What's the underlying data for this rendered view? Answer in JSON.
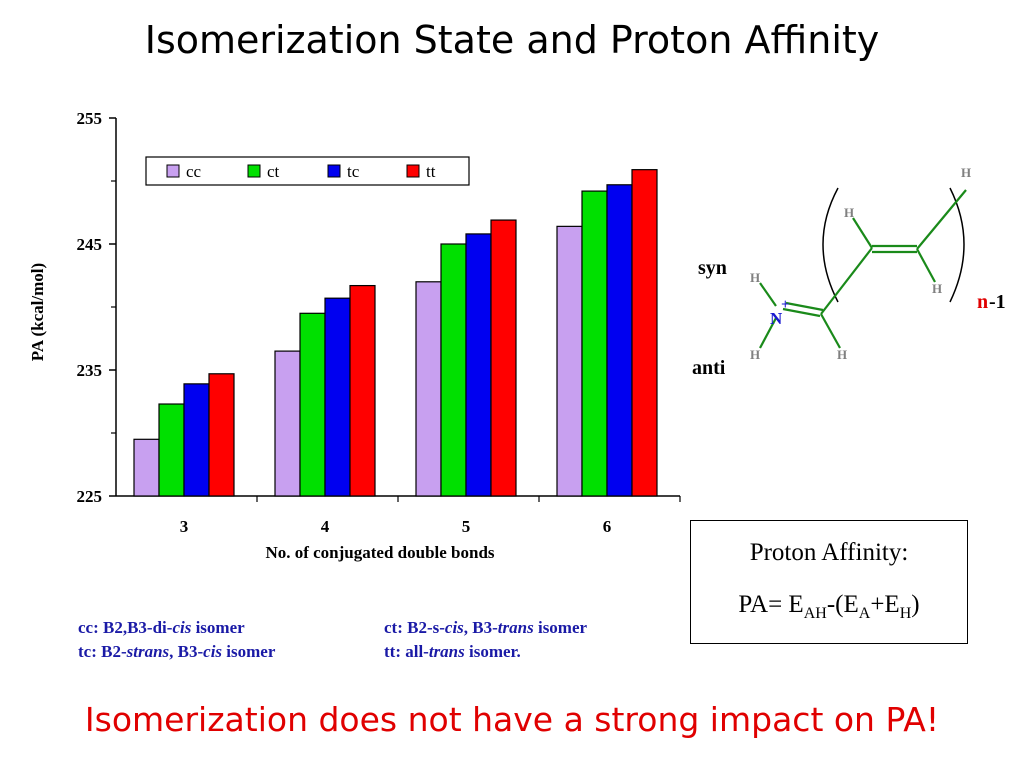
{
  "title": "Isomerization State and Proton Affinity",
  "chart_data": {
    "type": "bar",
    "xlabel": "No. of conjugated double bonds",
    "ylabel": "PA (kcal/mol)",
    "ylim": [
      225,
      255
    ],
    "yticks": [
      225,
      235,
      245,
      255
    ],
    "categories": [
      "3",
      "4",
      "5",
      "6"
    ],
    "legend_position": "top",
    "series": [
      {
        "name": "cc",
        "color": "#c8a0f0",
        "values": [
          229.5,
          236.5,
          242.0,
          246.4
        ]
      },
      {
        "name": "ct",
        "color": "#00e000",
        "values": [
          232.3,
          239.5,
          245.0,
          249.2
        ]
      },
      {
        "name": "tc",
        "color": "#0000f0",
        "values": [
          233.9,
          240.7,
          245.8,
          249.7
        ]
      },
      {
        "name": "tt",
        "color": "#ff0000",
        "values": [
          234.7,
          241.7,
          246.9,
          250.9
        ]
      }
    ]
  },
  "notes": {
    "cc": {
      "prefix": "cc: B2,B3-di-",
      "italic": "cis",
      "suffix": " isomer"
    },
    "ct": {
      "prefix": "ct: B2-s-",
      "italic1": "cis",
      "mid": ", B3-",
      "italic2": "trans",
      "suffix": " isomer"
    },
    "tc": {
      "prefix": "tc: B2-",
      "italic1": "strans",
      "mid": ", B3-",
      "italic2": "cis",
      "suffix": " isomer"
    },
    "tt": {
      "prefix": "tt: all-",
      "italic": "trans",
      "suffix": " isomer."
    }
  },
  "molecule": {
    "syn": "syn",
    "anti": "anti",
    "n_label": "n",
    "minus_one": "-1",
    "N": "N",
    "plus": "+",
    "H": "H"
  },
  "pa_box": {
    "line1": "Proton Affinity:",
    "pa": "PA= E",
    "sub_ah": "AH",
    "open": "-(E",
    "sub_a": "A",
    "plus_e": "+E",
    "sub_h": "H",
    "close": ")"
  },
  "conclusion": "Isomerization does not have a strong impact on PA!"
}
